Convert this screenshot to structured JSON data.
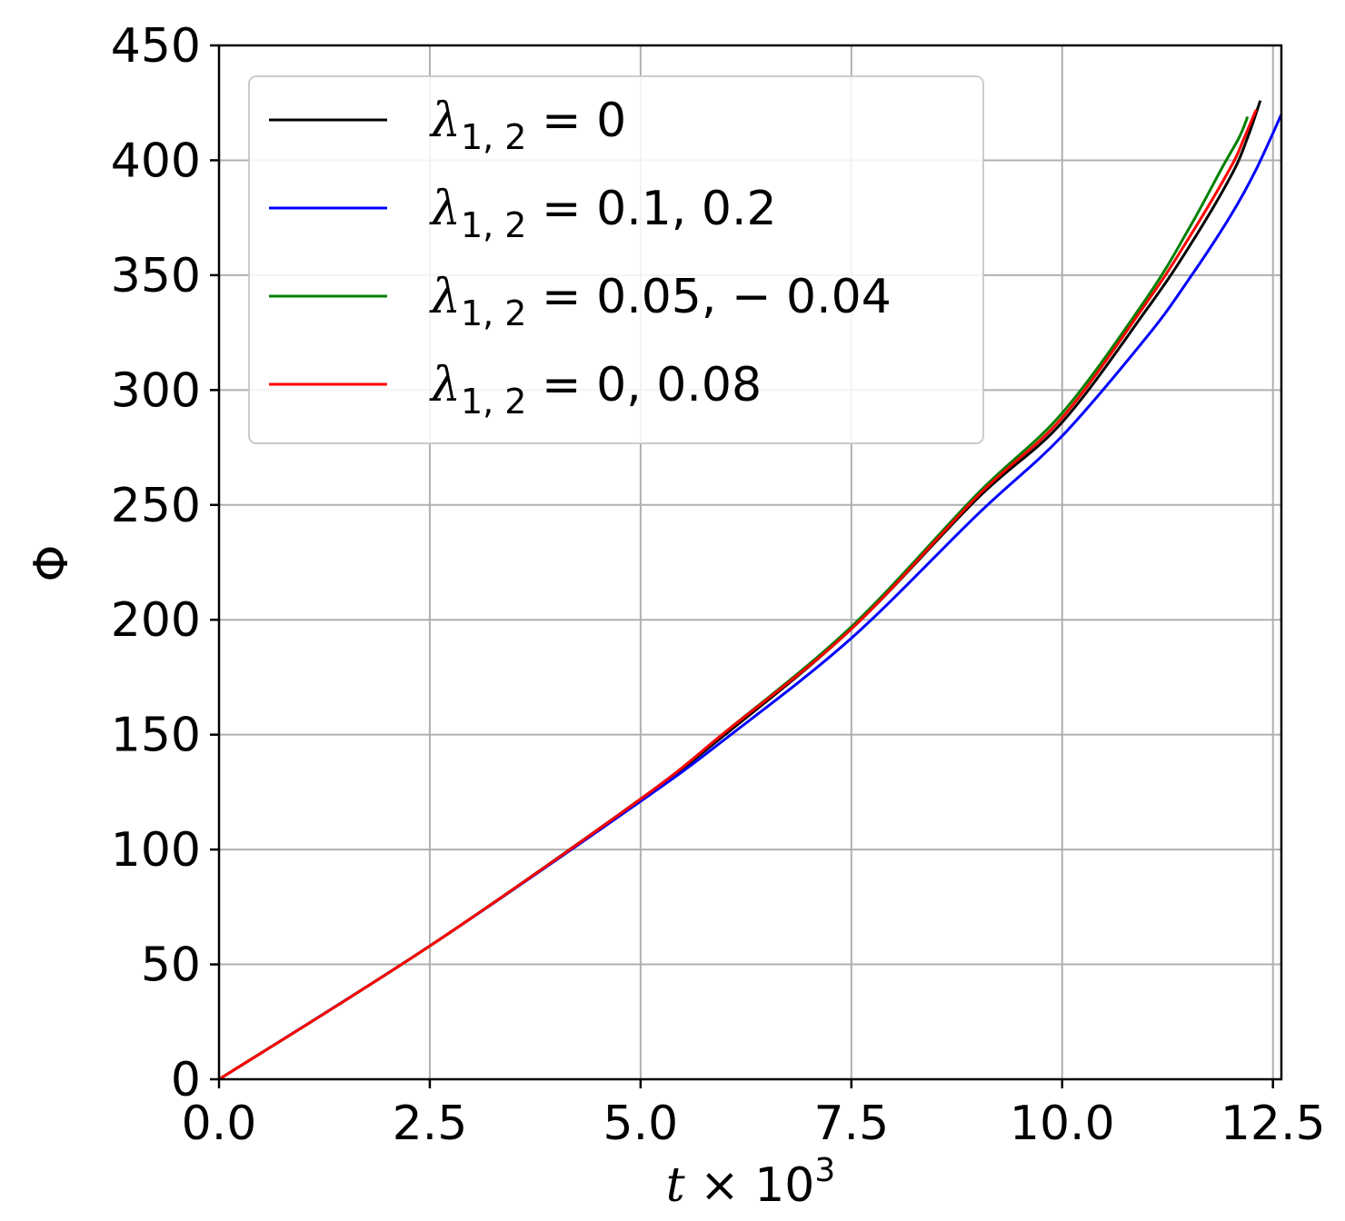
{
  "chart_data": {
    "type": "line",
    "title": "",
    "xlabel": "t × 10^3",
    "ylabel": "Φ",
    "xlim": [
      0,
      12.6
    ],
    "ylim": [
      0,
      450
    ],
    "grid": true,
    "legend_position": "top-left",
    "x_ticks": [
      "0.0",
      "2.5",
      "5.0",
      "7.5",
      "10.0",
      "12.5"
    ],
    "y_ticks": [
      "0",
      "50",
      "100",
      "150",
      "200",
      "250",
      "300",
      "350",
      "400",
      "450"
    ],
    "series": [
      {
        "name": "λ1,2 = 0",
        "color": "#000000",
        "x": [
          0,
          2.5,
          5.0,
          6.0,
          7.5,
          9.0,
          10.0,
          11.0,
          11.5,
          12.0,
          12.2,
          12.35
        ],
        "y": [
          0,
          58,
          122,
          150,
          196,
          253,
          286,
          335,
          362,
          393,
          410,
          426
        ]
      },
      {
        "name": "λ1,2 = 0.1, 0.2",
        "color": "#0000ff",
        "x": [
          0,
          2.5,
          5.0,
          6.0,
          7.5,
          9.0,
          10.0,
          11.0,
          11.5,
          12.0,
          12.3,
          12.6
        ],
        "y": [
          0,
          58,
          121,
          148,
          192,
          246,
          280,
          323,
          348,
          376,
          396,
          420
        ]
      },
      {
        "name": "λ1,2 = 0.05, −0.04",
        "color": "#008000",
        "x": [
          0,
          2.5,
          5.0,
          6.0,
          7.5,
          9.0,
          10.0,
          11.0,
          11.5,
          11.9,
          12.1,
          12.2
        ],
        "y": [
          0,
          58,
          122,
          151,
          197,
          255,
          290,
          340,
          370,
          397,
          410,
          419
        ]
      },
      {
        "name": "λ1,2 = 0, 0.08",
        "color": "#ff0000",
        "x": [
          0,
          2.5,
          5.0,
          6.0,
          7.5,
          9.0,
          10.0,
          11.0,
          11.5,
          12.0,
          12.15,
          12.3
        ],
        "y": [
          0,
          58,
          122,
          151,
          196,
          254,
          288,
          338,
          366,
          397,
          409,
          422
        ]
      }
    ]
  },
  "legend": {
    "entries": [
      {
        "color": "#000000",
        "sym": "λ",
        "sub": "1, 2",
        "rhs": " = 0"
      },
      {
        "color": "#0000ff",
        "sym": "λ",
        "sub": "1, 2",
        "rhs": " = 0.1, 0.2"
      },
      {
        "color": "#008000",
        "sym": "λ",
        "sub": "1, 2",
        "rhs": " = 0.05,  − 0.04"
      },
      {
        "color": "#ff0000",
        "sym": "λ",
        "sub": "1, 2",
        "rhs": " = 0, 0.08"
      }
    ]
  },
  "axis_text": {
    "x_var": "t",
    "x_times": " × 10",
    "x_exp": "3",
    "y_var": "Φ"
  }
}
